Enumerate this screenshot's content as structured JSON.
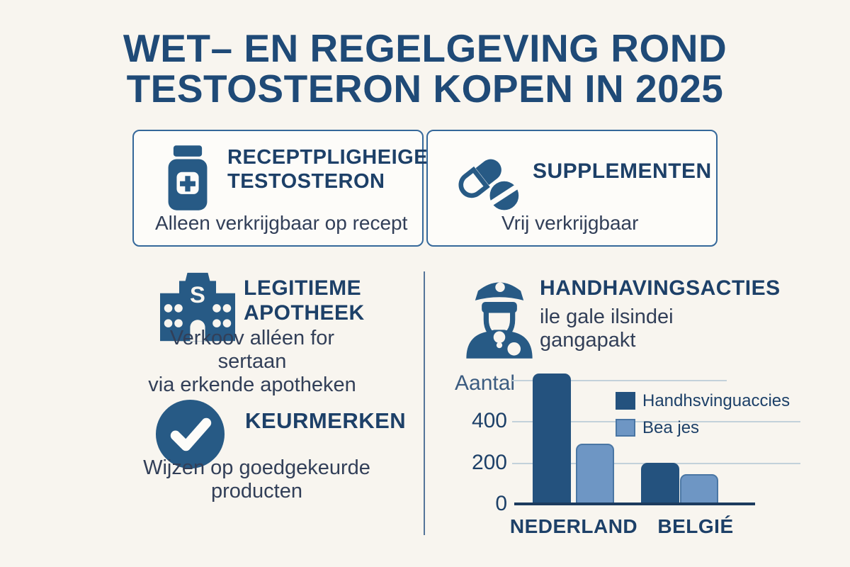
{
  "title_line1": "WET– EN REGELGEVING ROND",
  "title_line2": "TESTOSTERON KOPEN IN 2025",
  "cards": {
    "prescription": {
      "icon": "pill-bottle-icon",
      "heading_line1": "RECEPTPLIGHEIGE",
      "heading_line2": "TESTOSTERON",
      "body": "Alleen verkrijgbaar op recept"
    },
    "supplements": {
      "icon": "pills-icon",
      "heading": "SUPPLEMENTEN",
      "body": "Vrij verkrijgbaar"
    }
  },
  "sections": {
    "apotheek": {
      "icon": "pharmacy-building-icon",
      "icon_letter": "S",
      "heading_line1": "LEGITIEME",
      "heading_line2": "APOTHEEK",
      "body_line1": "Verkoov alléen for sertaan",
      "body_line2": "via erkende apotheken"
    },
    "handhaving": {
      "icon": "police-officer-icon",
      "heading": "HANDHAVINGSACTIES",
      "body_line1": "ile gale ilsindei",
      "body_line2": "gangapakt"
    },
    "keurmerken": {
      "icon": "check-circle-icon",
      "heading": "KEURMERKEN",
      "body_line1": "Wijzen op goedgekeurde",
      "body_line2": "producten"
    }
  },
  "chart_data": {
    "type": "bar",
    "title": "",
    "ylabel": "Aantal",
    "xlabel": "",
    "categories": [
      "NEDERLAND",
      "BELGIÉ"
    ],
    "series": [
      {
        "name": "Handhsvinguaccies",
        "color": "#24527e",
        "values": [
          630,
          200
        ]
      },
      {
        "name": "Bea jes",
        "color": "#6e96c4",
        "border_color": "#4a76a4",
        "values": [
          290,
          145
        ]
      }
    ],
    "yticks": [
      400,
      200,
      0
    ],
    "gridline_values": [
      600,
      400,
      200
    ],
    "ylim": [
      0,
      650
    ],
    "grid": true,
    "legend_position": "upper right"
  },
  "colors": {
    "background": "#f8f5ef",
    "card_background": "#fdfcf9",
    "card_border": "#35689a",
    "title_navy": "#1f4a77",
    "heading_navy": "#1d4068",
    "body_text": "#323f58",
    "icon_blue": "#275a85",
    "bar_dark": "#24527e",
    "bar_light": "#6e96c4",
    "gridline": "#c3d1da",
    "axis": "#1c3b5e",
    "divider": "#557499"
  }
}
